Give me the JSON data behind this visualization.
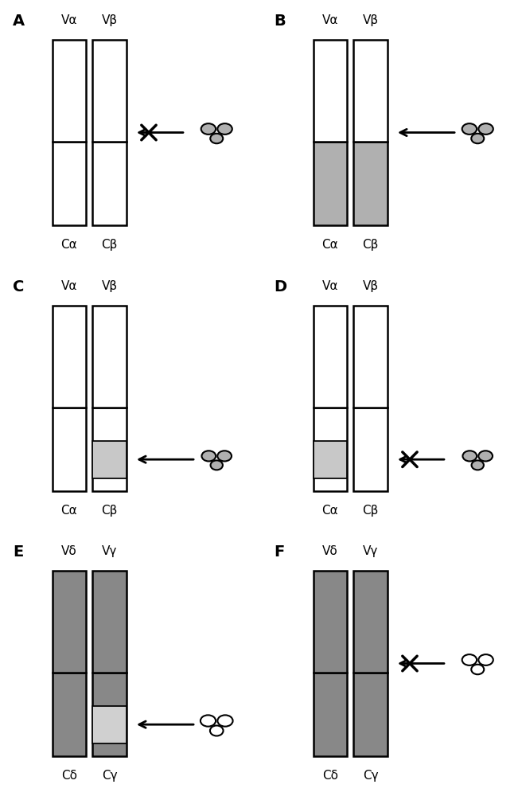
{
  "white": "#ffffff",
  "light_gray": "#c8c8c8",
  "med_gray": "#b0b0b0",
  "dark_gray": "#888888",
  "black": "#000000",
  "lw_chain": 1.8,
  "lw_arrow": 2.0,
  "lw_cross": 2.5,
  "panel_labels": [
    "A",
    "B",
    "C",
    "D",
    "E",
    "F"
  ],
  "label_fontsize": 14,
  "text_fontsize": 11
}
